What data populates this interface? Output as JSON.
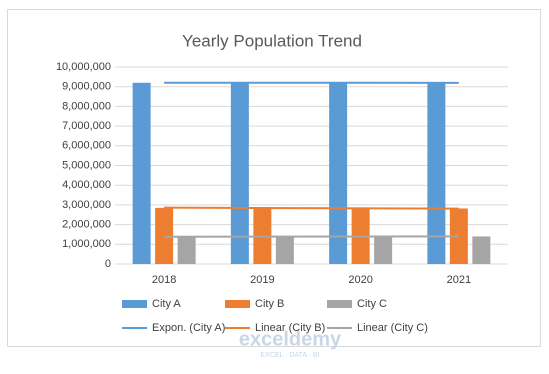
{
  "chart_data": {
    "type": "bar",
    "title": "Yearly Population Trend",
    "categories": [
      "2018",
      "2019",
      "2020",
      "2021"
    ],
    "series": [
      {
        "name": "City A",
        "color": "#5b9bd5",
        "values": [
          9200000,
          9210000,
          9190000,
          9200000
        ]
      },
      {
        "name": "City B",
        "color": "#ed7d31",
        "values": [
          2850000,
          2870000,
          2800000,
          2820000
        ]
      },
      {
        "name": "City C",
        "color": "#a5a5a5",
        "values": [
          1380000,
          1390000,
          1400000,
          1400000
        ]
      }
    ],
    "trendlines": [
      {
        "name": "Expon. (City A)",
        "series": 0,
        "kind": "exponential",
        "color": "#5b9bd5"
      },
      {
        "name": "Linear (City B)",
        "series": 1,
        "kind": "linear",
        "color": "#ed7d31"
      },
      {
        "name": "Linear (City C)",
        "series": 2,
        "kind": "linear",
        "color": "#a5a5a5"
      }
    ],
    "ylim": [
      0,
      10000000
    ],
    "yticks": [
      0,
      {
        "value": 1000000,
        "label": "1,000,000"
      },
      {
        "value": 2000000,
        "label": "2,000,000"
      },
      {
        "value": 3000000,
        "label": "3,000,000"
      },
      {
        "value": 4000000,
        "label": "4,000,000"
      },
      {
        "value": 5000000,
        "label": "5,000,000"
      },
      {
        "value": 6000000,
        "label": "6,000,000"
      },
      {
        "value": 7000000,
        "label": "7,000,000"
      },
      {
        "value": 8000000,
        "label": "8,000,000"
      },
      {
        "value": 9000000,
        "label": "9,000,000"
      },
      {
        "value": 10000000,
        "label": "10,000,000"
      }
    ],
    "grid": true,
    "legend": "bottom",
    "watermark": {
      "name": "exceldemy",
      "tagline": "EXCEL · DATA · BI"
    }
  }
}
